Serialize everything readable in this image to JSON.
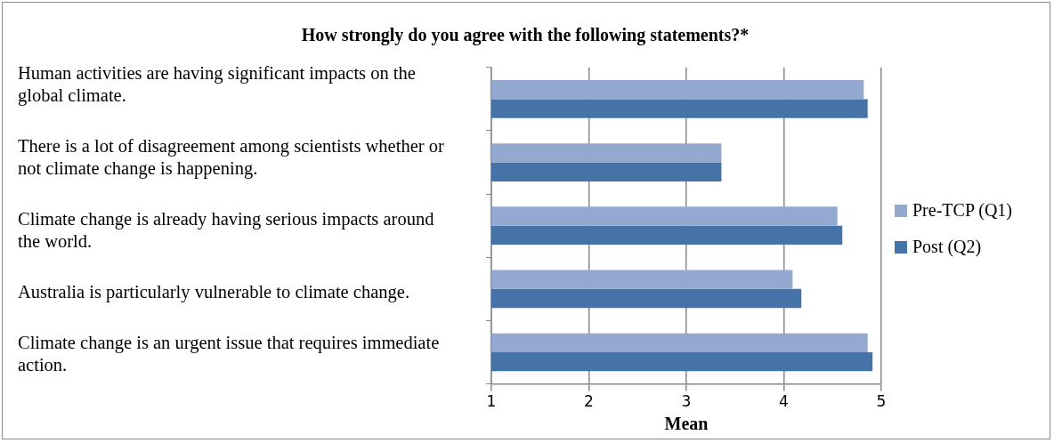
{
  "chart_data": {
    "type": "bar",
    "orientation": "horizontal",
    "title": "How strongly do you agree with the following statements?*",
    "xlabel": "Mean",
    "categories": [
      null,
      null,
      null,
      null,
      null
    ],
    "series": [
      {
        "name": "Pre-TCP (Q1)",
        "color": "#95a9d0",
        "values": [
          4.82,
          3.36,
          4.55,
          4.09,
          4.86
        ]
      },
      {
        "name": "Post (Q2)",
        "color": "#4573a7",
        "values": [
          4.86,
          3.36,
          4.6,
          4.18,
          4.91
        ]
      }
    ],
    "xlim": [
      1,
      5
    ],
    "xticks": [
      1,
      2,
      3,
      4,
      5
    ],
    "grid": "x",
    "legend": "right",
    "annotations": [
      "Human activities are having significant impacts on the global climate.",
      "There is a lot of disagreement among scientists whether or not climate change is happening.",
      "Climate change is already having serious impacts around the world.",
      "Australia is particularly vulnerable to climate change.",
      "Climate change is an urgent issue that requires immediate action."
    ]
  }
}
